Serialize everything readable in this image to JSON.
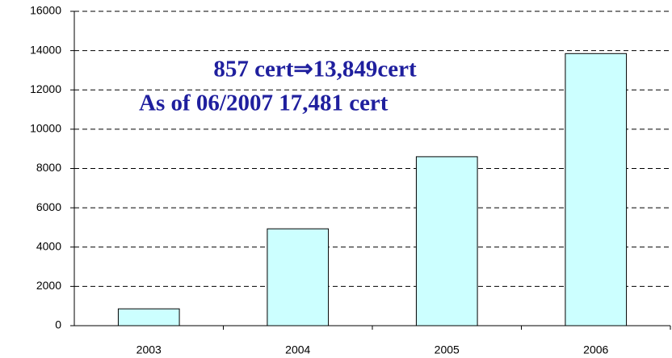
{
  "chart_data": {
    "type": "bar",
    "annotations": [
      "857 cert⇒13,849cert",
      "As of 06/2007 17,481 cert"
    ],
    "categories": [
      "2003",
      "2004",
      "2005",
      "2006"
    ],
    "values": [
      857,
      4930,
      8600,
      13849
    ],
    "color": "#ccffff",
    "ylim": [
      0,
      16000
    ],
    "yticks": [
      0,
      2000,
      4000,
      6000,
      8000,
      10000,
      12000,
      14000,
      16000
    ],
    "grid": true
  }
}
